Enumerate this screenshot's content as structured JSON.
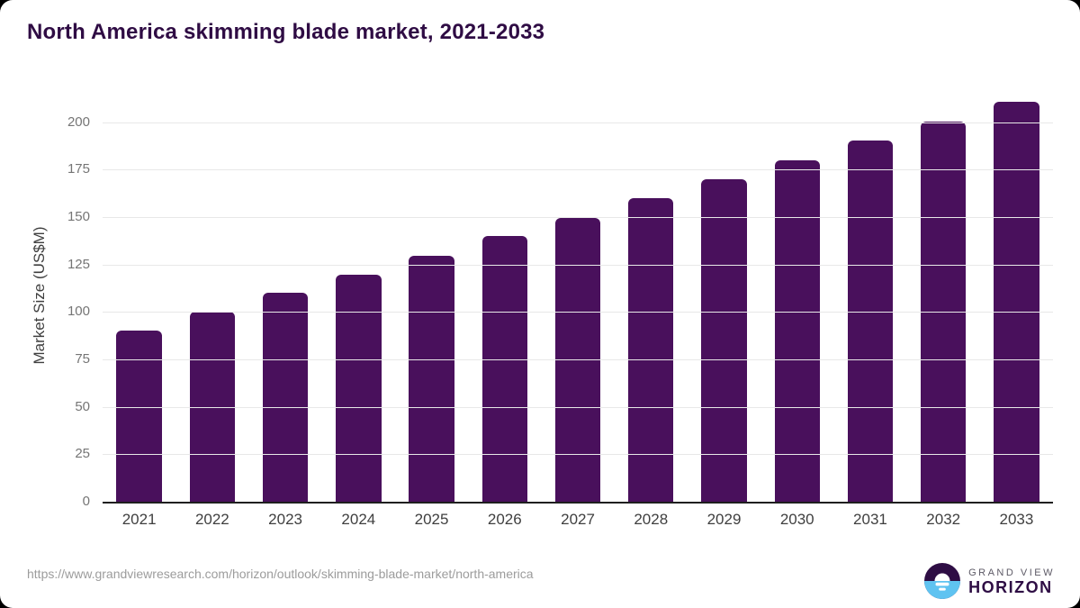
{
  "header": {
    "title": "North America skimming blade market, 2021-2033"
  },
  "footer": {
    "source_url": "https://www.grandviewresearch.com/horizon/outlook/skimming-blade-market/north-america",
    "brand": {
      "line1": "GRAND VIEW",
      "line2": "HORIZON",
      "logo_icon": "sun-over-water-icon"
    }
  },
  "colors": {
    "title": "#2f0c44",
    "bar": "#49105c",
    "gridline": "#e8e8e8",
    "axis_line": "#1f1f1f",
    "y_tick_text": "#757575",
    "x_tick_text": "#3f3f3f",
    "source_text": "#9c9c9c",
    "logo_blue": "#5fc3f1",
    "logo_purple": "#2e0d44",
    "page_background": "#ffffff",
    "outer_background": "#000000"
  },
  "chart_data": {
    "type": "bar",
    "title": "North America skimming blade market, 2021-2033",
    "categories": [
      "2021",
      "2022",
      "2023",
      "2024",
      "2025",
      "2026",
      "2027",
      "2028",
      "2029",
      "2030",
      "2031",
      "2032",
      "2033"
    ],
    "values": [
      90,
      100,
      110,
      119.5,
      129.5,
      140,
      149.5,
      160,
      170,
      180,
      190.5,
      200.5,
      211
    ],
    "xlabel": "",
    "ylabel": "Market Size (US$M)",
    "yticks": [
      0,
      25,
      50,
      75,
      100,
      125,
      150,
      175,
      200
    ],
    "ylim": [
      0,
      217
    ],
    "grid": true,
    "legend": "none",
    "bar_color": "#49105c"
  }
}
